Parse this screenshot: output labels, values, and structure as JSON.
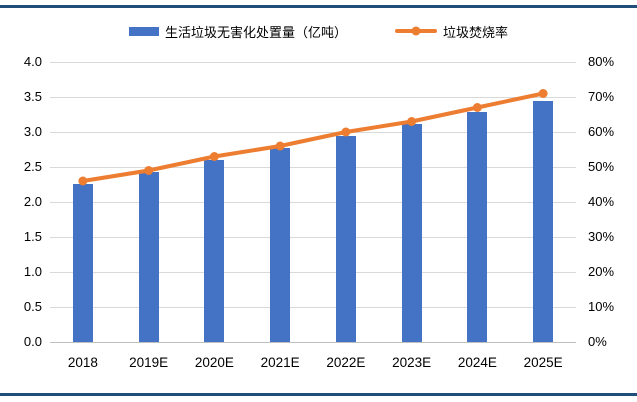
{
  "page": {
    "background": "#FFFFFF",
    "rule_color": "#1F4E79"
  },
  "legend": {
    "bar_label": "生活垃圾无害化处置量（亿吨）",
    "line_label": "垃圾焚烧率"
  },
  "colors": {
    "bar": "#4472C4",
    "line": "#ED7D31",
    "grid": "#D9D9D9",
    "axis_line": "#BFBFBF",
    "tick_text": "#000000"
  },
  "chart_data": {
    "type": "bar+line combo",
    "categories": [
      "2018",
      "2019E",
      "2020E",
      "2021E",
      "2022E",
      "2023E",
      "2024E",
      "2025E"
    ],
    "series": [
      {
        "name": "生活垃圾无害化处置量（亿吨）",
        "type": "bar",
        "axis": "left",
        "color": "#4472C4",
        "values": [
          2.26,
          2.43,
          2.6,
          2.77,
          2.94,
          3.11,
          3.28,
          3.45
        ]
      },
      {
        "name": "垃圾焚烧率",
        "type": "line",
        "axis": "right",
        "color": "#ED7D31",
        "values_pct": [
          46,
          49,
          53,
          56,
          60,
          63,
          67,
          71
        ]
      }
    ],
    "left_axis": {
      "min": 0,
      "max": 4.0,
      "step": 0.5,
      "ticks": [
        "4.0",
        "3.5",
        "3.0",
        "2.5",
        "2.0",
        "1.5",
        "1.0",
        "0.5",
        "0.0"
      ]
    },
    "right_axis": {
      "min": 0,
      "max": 80,
      "step": 10,
      "ticks": [
        "80%",
        "70%",
        "60%",
        "50%",
        "40%",
        "30%",
        "20%",
        "10%",
        "0%"
      ]
    },
    "grid": true,
    "legend_position": "top"
  }
}
